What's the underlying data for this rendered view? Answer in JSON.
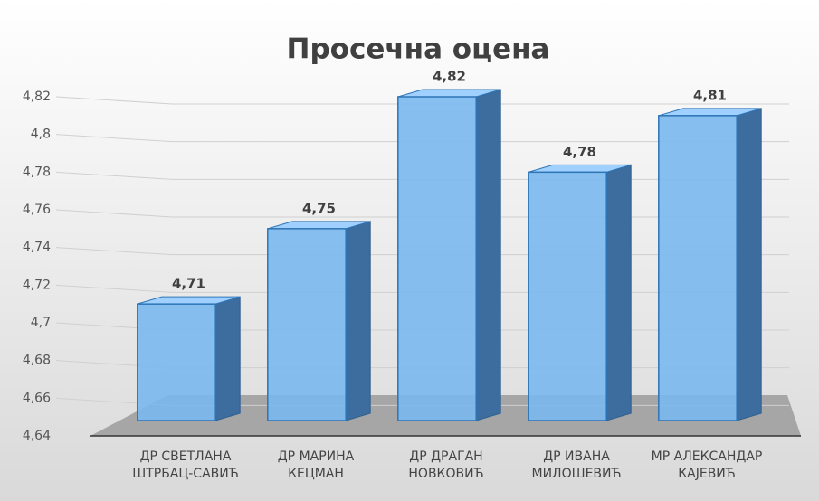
{
  "chart_data": {
    "type": "bar",
    "title": "Просечна оцена",
    "categories": [
      "ДР СВЕТЛАНА\nШТРБАЦ-САВИЋ",
      "ДР МАРИНА\nКЕЦМАН",
      "ДР ДРАГАН\nНОВКОВИЋ",
      "ДР ИВАНА\nМИЛОШЕВИЋ",
      "МР АЛЕКСАНДАР\nКАЈЕВИЋ"
    ],
    "values": [
      4.71,
      4.75,
      4.82,
      4.78,
      4.81
    ],
    "value_labels": [
      "4,71",
      "4,75",
      "4,82",
      "4,78",
      "4,81"
    ],
    "color": "#7ab8f0",
    "ylim": [
      4.64,
      4.82
    ],
    "yticks": [
      {
        "value": 4.64,
        "label": "4,64"
      },
      {
        "value": 4.66,
        "label": "4,66"
      },
      {
        "value": 4.68,
        "label": "4,68"
      },
      {
        "value": 4.7,
        "label": "4,7"
      },
      {
        "value": 4.72,
        "label": "4,72"
      },
      {
        "value": 4.74,
        "label": "4,74"
      },
      {
        "value": 4.76,
        "label": "4,76"
      },
      {
        "value": 4.78,
        "label": "4,78"
      },
      {
        "value": 4.8,
        "label": "4,8"
      },
      {
        "value": 4.82,
        "label": "4,82"
      }
    ],
    "grid": true
  }
}
